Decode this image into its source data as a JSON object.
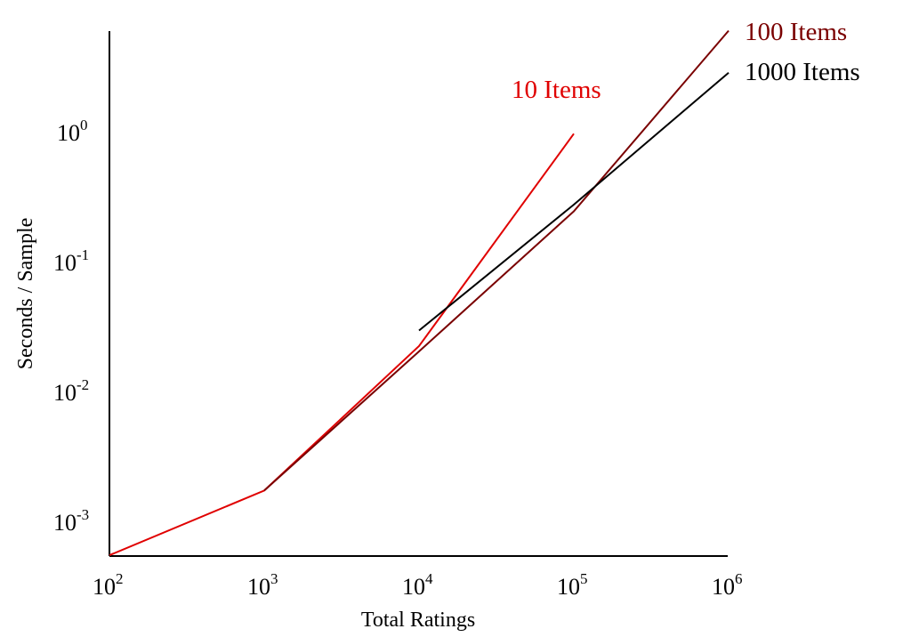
{
  "chart_data": {
    "type": "line",
    "title": "",
    "xlabel": "Total Ratings",
    "ylabel": "Seconds / Sample",
    "xscale": "log",
    "yscale": "log",
    "xlim": [
      100,
      1000000
    ],
    "ylim": [
      0.00054,
      7
    ],
    "grid": false,
    "legend_position": "inline labels at line ends",
    "x_ticks": [
      {
        "base": "10",
        "exp": "2"
      },
      {
        "base": "10",
        "exp": "3"
      },
      {
        "base": "10",
        "exp": "4"
      },
      {
        "base": "10",
        "exp": "5"
      },
      {
        "base": "10",
        "exp": "6"
      }
    ],
    "y_ticks": [
      {
        "base": "10",
        "exp": "0"
      },
      {
        "base": "10",
        "exp": "-1"
      },
      {
        "base": "10",
        "exp": "-2"
      },
      {
        "base": "10",
        "exp": "-3"
      }
    ],
    "series": [
      {
        "name": "10 Items",
        "color": "#e00000",
        "x": [
          100,
          1000,
          10000,
          100000
        ],
        "y": [
          0.00054,
          0.0017,
          0.022,
          0.95
        ]
      },
      {
        "name": "100 Items",
        "color": "#7a0000",
        "x": [
          1000,
          10000,
          100000,
          1000000
        ],
        "y": [
          0.0017,
          0.02,
          0.24,
          5.9
        ]
      },
      {
        "name": "1000 Items",
        "color": "#000000",
        "x": [
          10000,
          100000,
          1000000
        ],
        "y": [
          0.029,
          0.27,
          2.8
        ]
      }
    ]
  },
  "labels": {
    "series_10": "10 Items",
    "series_100": "100 Items",
    "series_1000": "1000 Items",
    "xlabel": "Total Ratings",
    "ylabel": "Seconds / Sample",
    "tick_base": "10",
    "x_exp": [
      "2",
      "3",
      "4",
      "5",
      "6"
    ],
    "y_exp": [
      "0",
      "-1",
      "-2",
      "-3"
    ]
  }
}
